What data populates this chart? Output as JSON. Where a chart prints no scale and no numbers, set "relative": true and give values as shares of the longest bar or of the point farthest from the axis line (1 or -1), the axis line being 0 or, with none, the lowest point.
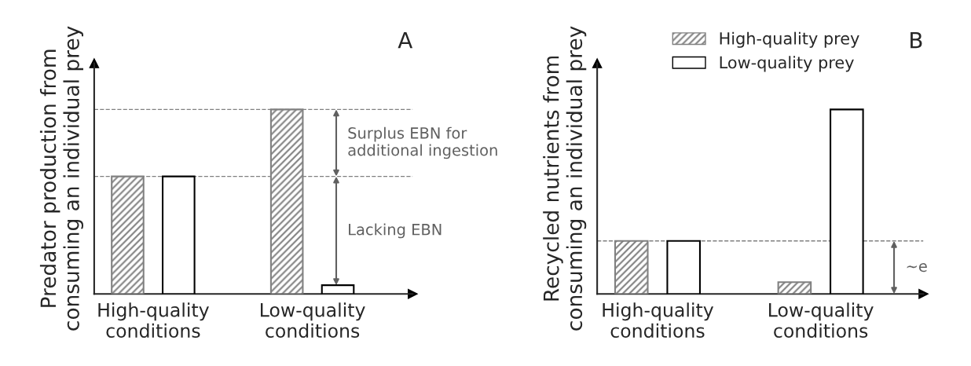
{
  "chart_data": [
    {
      "type": "bar",
      "title": "A",
      "ylabel": "Predator production from\nconsuming an individual prey",
      "categories": [
        "High-quality\nconditions",
        "Low-quality\nconditions"
      ],
      "relative": true,
      "series": [
        {
          "color": "#808080",
          "values": [
            0.637,
            1
          ]
        },
        {
          "color": "#ffffff",
          "values": [
            0.637,
            0.047
          ]
        }
      ],
      "ref_lines": [
        {
          "axis": "y",
          "value": 1,
          "color": "#808080",
          "line_style": "dashed"
        },
        {
          "axis": "y",
          "value": 0.637,
          "color": "#808080",
          "line_style": "dashed"
        }
      ],
      "annotations": [
        "Surplus EBN for\nadditional ingestion",
        "Lacking EBN"
      ],
      "legend": false
    },
    {
      "type": "bar",
      "title": "B",
      "ylabel": "Recycled nutrients from\nconsuming an individual prey",
      "categories": [
        "High-quality\nconditions",
        "Low-quality\nconditions"
      ],
      "relative": true,
      "series": [
        {
          "name": "High-quality prey",
          "color": "#808080",
          "values": [
            0.287,
            0.064
          ]
        },
        {
          "name": "Low-quality prey",
          "color": "#ffffff",
          "values": [
            0.287,
            1
          ]
        }
      ],
      "ref_lines": [
        {
          "axis": "y",
          "value": 0.287,
          "color": "#808080",
          "line_style": "dashed"
        }
      ],
      "annotations": [
        "~e"
      ],
      "legend": "top right"
    }
  ]
}
